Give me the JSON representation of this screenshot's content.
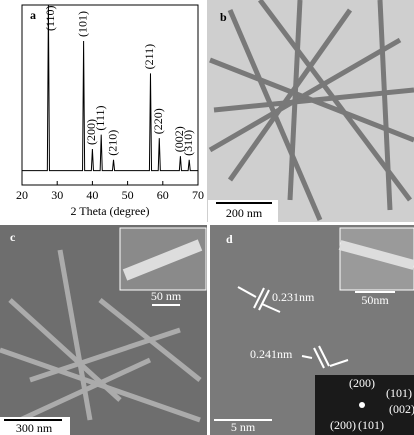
{
  "chart_data": {
    "type": "line",
    "panel_label": "a",
    "xlabel": "2 Theta (degree)",
    "x": [
      20,
      27.2,
      27.5,
      27.8,
      37.2,
      37.5,
      37.8,
      39.7,
      40,
      40.3,
      42.2,
      42.5,
      42.8,
      45.7,
      46,
      46.3,
      56.2,
      56.5,
      56.8,
      58.7,
      59,
      59.3,
      64.7,
      65,
      65.3,
      67.2,
      67.5,
      67.8,
      70
    ],
    "values": [
      8,
      8,
      100,
      8,
      8,
      80,
      8,
      8,
      20,
      8,
      8,
      28,
      8,
      8,
      14,
      8,
      8,
      62,
      8,
      8,
      26,
      8,
      8,
      16,
      8,
      8,
      14,
      8,
      8
    ],
    "color": "#000000",
    "xlim": [
      20,
      70
    ],
    "xticks": [
      20,
      30,
      40,
      50,
      60,
      70
    ],
    "ylim": [
      0,
      100
    ],
    "annotations": [
      {
        "text": "(110)",
        "x": 28.3
      },
      {
        "text": "(101)",
        "x": 37.5
      },
      {
        "text": "(200)",
        "x": 40
      },
      {
        "text": "(111)",
        "x": 42.5
      },
      {
        "text": "(210)",
        "x": 46
      },
      {
        "text": "(211)",
        "x": 56.5
      },
      {
        "text": "(220)",
        "x": 59
      },
      {
        "text": "(002)",
        "x": 65
      },
      {
        "text": "(310)",
        "x": 67.5
      }
    ]
  },
  "images": [
    {
      "label": "b",
      "scale_bar": "200 nm"
    },
    {
      "label": "c",
      "inset_scale": "50 nm",
      "scale_bar": "300 nm"
    },
    {
      "label": "d",
      "inset_scale": "50nm",
      "spacings": [
        "0.231nm",
        "0.241nm"
      ],
      "scale_bar": "5 nm",
      "fft_spots": [
        "(200)",
        "(101)",
        "(002)",
        "(200)",
        "(101)"
      ]
    }
  ]
}
